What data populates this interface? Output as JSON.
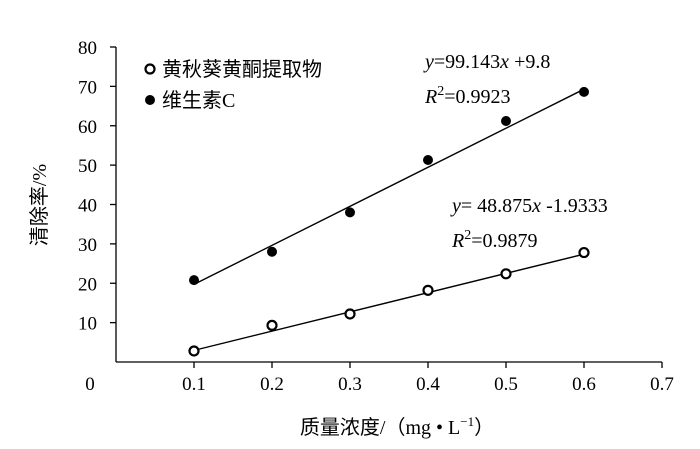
{
  "chart_data": {
    "type": "scatter",
    "xlabel": "质量浓度/（mg • L",
    "xlabel_exp": "−1",
    "xlabel_end": "）",
    "ylabel": "清除率/%",
    "xlim": [
      0,
      0.7
    ],
    "ylim": [
      0,
      80
    ],
    "x_ticks": [
      "0.1",
      "0.2",
      "0.3",
      "0.4",
      "0.5",
      "0.6",
      "0.7"
    ],
    "y_ticks": [
      "0",
      "10",
      "20",
      "30",
      "40",
      "50",
      "60",
      "70",
      "80"
    ],
    "grid": false,
    "legend_position": "top-left",
    "series": [
      {
        "name": "黄秋葵黄酮提取物",
        "marker": "open-circle",
        "color": "#000000",
        "x": [
          0.1,
          0.2,
          0.3,
          0.4,
          0.5,
          0.6
        ],
        "values": [
          2.8,
          9.3,
          12.2,
          18.2,
          22.4,
          27.8
        ],
        "trendline": {
          "slope": 48.875,
          "intercept": -1.9333,
          "eq_y": "y",
          "eq_rest": "= 48.875",
          "eq_x": "x",
          "eq_const": " -1.9333",
          "r2_r": "R",
          "r2_exp": "2",
          "r2_val": "=0.9879"
        }
      },
      {
        "name": "维生素C",
        "marker": "filled-circle",
        "color": "#000000",
        "x": [
          0.1,
          0.2,
          0.3,
          0.4,
          0.5,
          0.6
        ],
        "values": [
          20.8,
          28.0,
          38.0,
          51.3,
          61.2,
          68.6
        ],
        "trendline": {
          "slope": 99.143,
          "intercept": 9.8,
          "eq_y": "y",
          "eq_rest": "=99.143",
          "eq_x": "x",
          "eq_const": " +9.8",
          "r2_r": "R",
          "r2_exp": "2",
          "r2_val": "=0.9923"
        }
      }
    ]
  }
}
